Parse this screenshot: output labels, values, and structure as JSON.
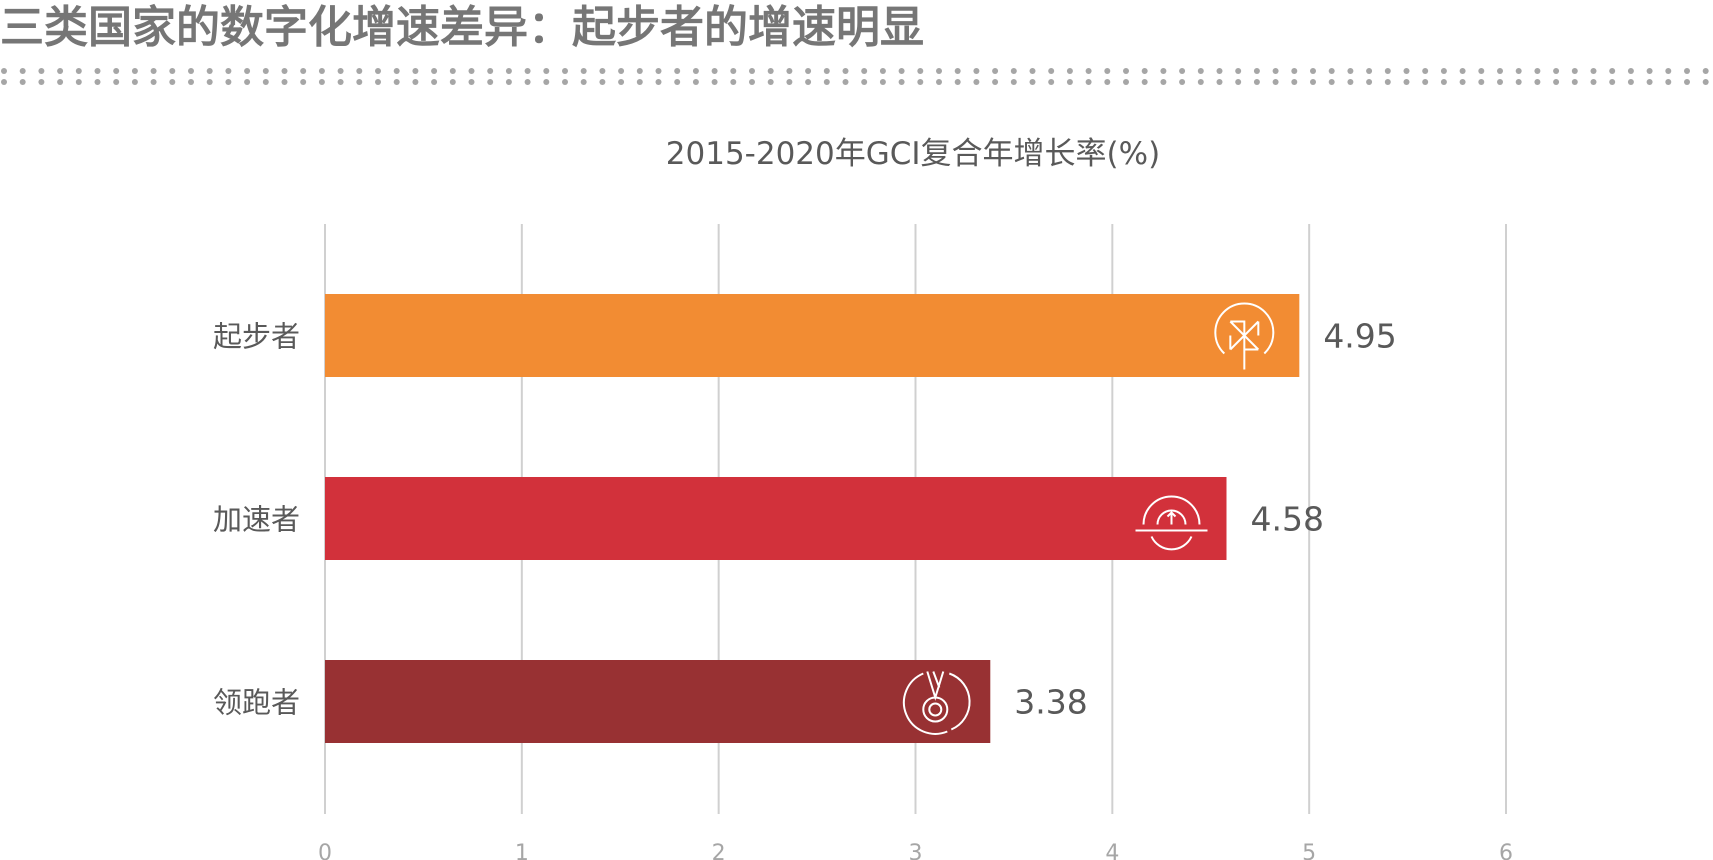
{
  "header": {
    "title": "三类国家的数字化增速差异：起步者的增速明显"
  },
  "chart_data": {
    "type": "bar",
    "orientation": "horizontal",
    "title": "2015-2020年GCI复合年增长率(%)",
    "categories": [
      "起步者",
      "加速者",
      "领跑者"
    ],
    "values": [
      4.95,
      4.58,
      3.38
    ],
    "data_labels": [
      "4.95",
      "4.58",
      "3.38"
    ],
    "xlim": [
      0,
      6
    ],
    "xticks": [
      "0",
      "1",
      "2",
      "3",
      "4",
      "5",
      "6"
    ],
    "grid": true,
    "bar_colors": [
      "#F28C33",
      "#D2313B",
      "#983133"
    ],
    "bar_icons": [
      "pinwheel-icon",
      "speedometer-icon",
      "medal-icon"
    ]
  }
}
